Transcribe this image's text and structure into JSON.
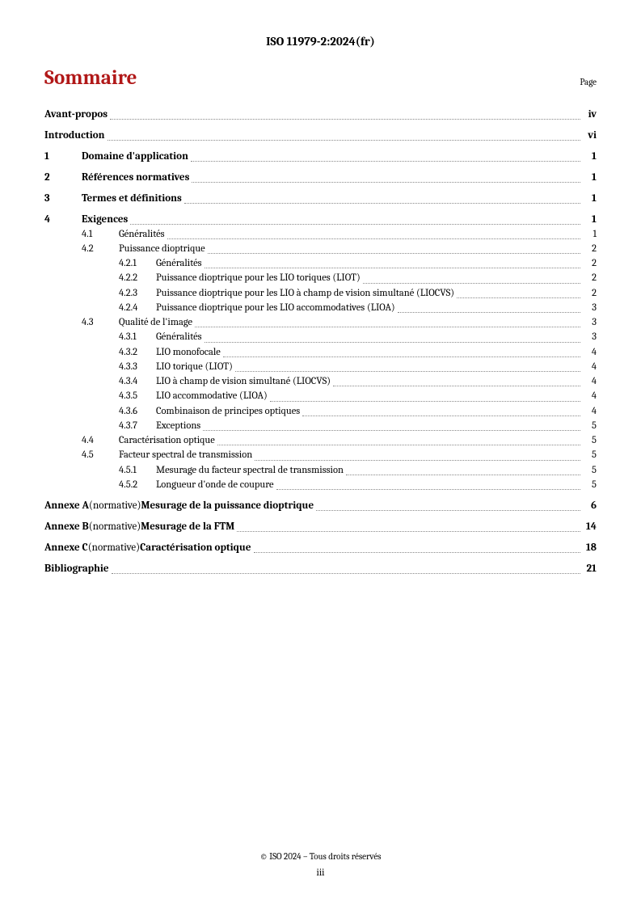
{
  "header": "ISO 11979-2:2024(fr)",
  "title": "Sommaire",
  "page_label": "Page",
  "footer_copyright": "© ISO 2024 – Tous droits réservés",
  "footer_page": "iii",
  "colors": {
    "title": "#b11818",
    "text": "#000000",
    "leader": "#888888",
    "background": "#ffffff"
  },
  "typography": {
    "header_fontsize": 15,
    "title_fontsize": 25,
    "pagelabel_fontsize": 11,
    "body_fontsize": 12.5,
    "bold_fontsize": 13,
    "footer_fontsize": 11
  },
  "toc": [
    {
      "level": 0,
      "num": "",
      "text": "Avant-propos",
      "page": "iv",
      "bold": true
    },
    {
      "level": 0,
      "num": "",
      "text": "Introduction",
      "page": "vi",
      "bold": true
    },
    {
      "level": 0,
      "num": "1",
      "text": "Domaine d'application",
      "page": "1",
      "bold": true
    },
    {
      "level": 0,
      "num": "2",
      "text": "Références normatives",
      "page": "1",
      "bold": true
    },
    {
      "level": 0,
      "num": "3",
      "text": "Termes et définitions",
      "page": "1",
      "bold": true
    },
    {
      "level": 0,
      "num": "4",
      "text": "Exigences",
      "page": "1",
      "bold": true
    },
    {
      "level": 1,
      "num": "4.1",
      "text": "Généralités",
      "page": "1"
    },
    {
      "level": 1,
      "num": "4.2",
      "text": "Puissance dioptrique",
      "page": "2"
    },
    {
      "level": 2,
      "num": "4.2.1",
      "text": "Généralités",
      "page": "2"
    },
    {
      "level": 2,
      "num": "4.2.2",
      "text": "Puissance dioptrique pour les LIO toriques (LIOT)",
      "page": "2"
    },
    {
      "level": 2,
      "num": "4.2.3",
      "text": "Puissance dioptrique pour les LIO à champ de vision simultané (LIOCVS)",
      "page": "2"
    },
    {
      "level": 2,
      "num": "4.2.4",
      "text": "Puissance dioptrique pour les LIO accommodatives (LIOA)",
      "page": "3"
    },
    {
      "level": 1,
      "num": "4.3",
      "text": "Qualité de l'image",
      "page": "3"
    },
    {
      "level": 2,
      "num": "4.3.1",
      "text": "Généralités",
      "page": "3"
    },
    {
      "level": 2,
      "num": "4.3.2",
      "text": "LIO monofocale",
      "page": "4"
    },
    {
      "level": 2,
      "num": "4.3.3",
      "text": "LIO torique (LIOT)",
      "page": "4"
    },
    {
      "level": 2,
      "num": "4.3.4",
      "text": "LIO à champ de vision simultané (LIOCVS)",
      "page": "4"
    },
    {
      "level": 2,
      "num": "4.3.5",
      "text": "LIO accommodative (LIOA)",
      "page": "4"
    },
    {
      "level": 2,
      "num": "4.3.6",
      "text": "Combinaison de principes optiques",
      "page": "4"
    },
    {
      "level": 2,
      "num": "4.3.7",
      "text": "Exceptions",
      "page": "5"
    },
    {
      "level": 1,
      "num": "4.4",
      "text": "Caractérisation optique",
      "page": "5"
    },
    {
      "level": 1,
      "num": "4.5",
      "text": "Facteur spectral de transmission",
      "page": "5"
    },
    {
      "level": 2,
      "num": "4.5.1",
      "text": "Mesurage du facteur spectral de transmission",
      "page": "5"
    },
    {
      "level": 2,
      "num": "4.5.2",
      "text": "Longueur d'onde de coupure",
      "page": "5"
    },
    {
      "level": 0,
      "annex": "Annexe A",
      "norm": "(normative)",
      "text": "Mesurage de la puissance dioptrique",
      "page": "6",
      "bold": true,
      "is_annex": true
    },
    {
      "level": 0,
      "annex": "Annexe B",
      "norm": "(normative)",
      "text": "Mesurage de la FTM",
      "page": "14",
      "bold": true,
      "is_annex": true
    },
    {
      "level": 0,
      "annex": "Annexe C",
      "norm": "(normative)",
      "text": "Caractérisation optique",
      "page": "18",
      "bold": true,
      "is_annex": true
    },
    {
      "level": 0,
      "num": "",
      "text": "Bibliographie",
      "page": "21",
      "bold": true
    }
  ]
}
